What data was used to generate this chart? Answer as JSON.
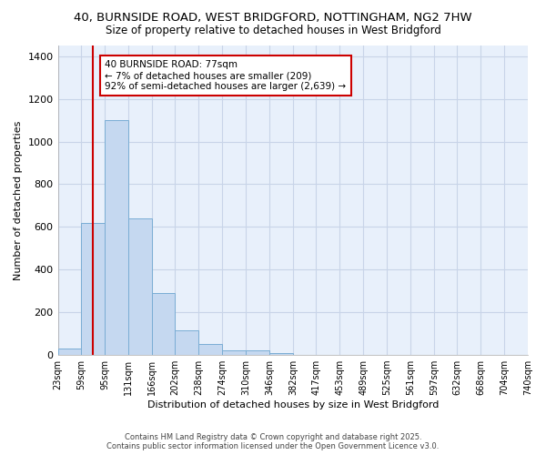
{
  "title_line1": "40, BURNSIDE ROAD, WEST BRIDGFORD, NOTTINGHAM, NG2 7HW",
  "title_line2": "Size of property relative to detached houses in West Bridgford",
  "xlabel": "Distribution of detached houses by size in West Bridgford",
  "ylabel": "Number of detached properties",
  "annotation_line1": "40 BURNSIDE ROAD: 77sqm",
  "annotation_line2": "← 7% of detached houses are smaller (209)",
  "annotation_line3": "92% of semi-detached houses are larger (2,639) →",
  "property_size": 77,
  "bin_edges": [
    23,
    59,
    95,
    131,
    166,
    202,
    238,
    274,
    310,
    346,
    382,
    417,
    453,
    489,
    525,
    561,
    597,
    632,
    668,
    704,
    740
  ],
  "bar_heights": [
    30,
    620,
    1100,
    640,
    290,
    115,
    50,
    20,
    20,
    10,
    0,
    0,
    0,
    0,
    0,
    0,
    0,
    0,
    0,
    0
  ],
  "bar_color": "#c5d8f0",
  "bar_edge_color": "#7aadd4",
  "vline_color": "#cc0000",
  "vline_x": 77,
  "fig_background": "#ffffff",
  "plot_background": "#e8f0fb",
  "grid_color": "#c8d4e8",
  "footer_line1": "Contains HM Land Registry data © Crown copyright and database right 2025.",
  "footer_line2": "Contains public sector information licensed under the Open Government Licence v3.0.",
  "ylim": [
    0,
    1450
  ],
  "yticks": [
    0,
    200,
    400,
    600,
    800,
    1000,
    1200,
    1400
  ]
}
